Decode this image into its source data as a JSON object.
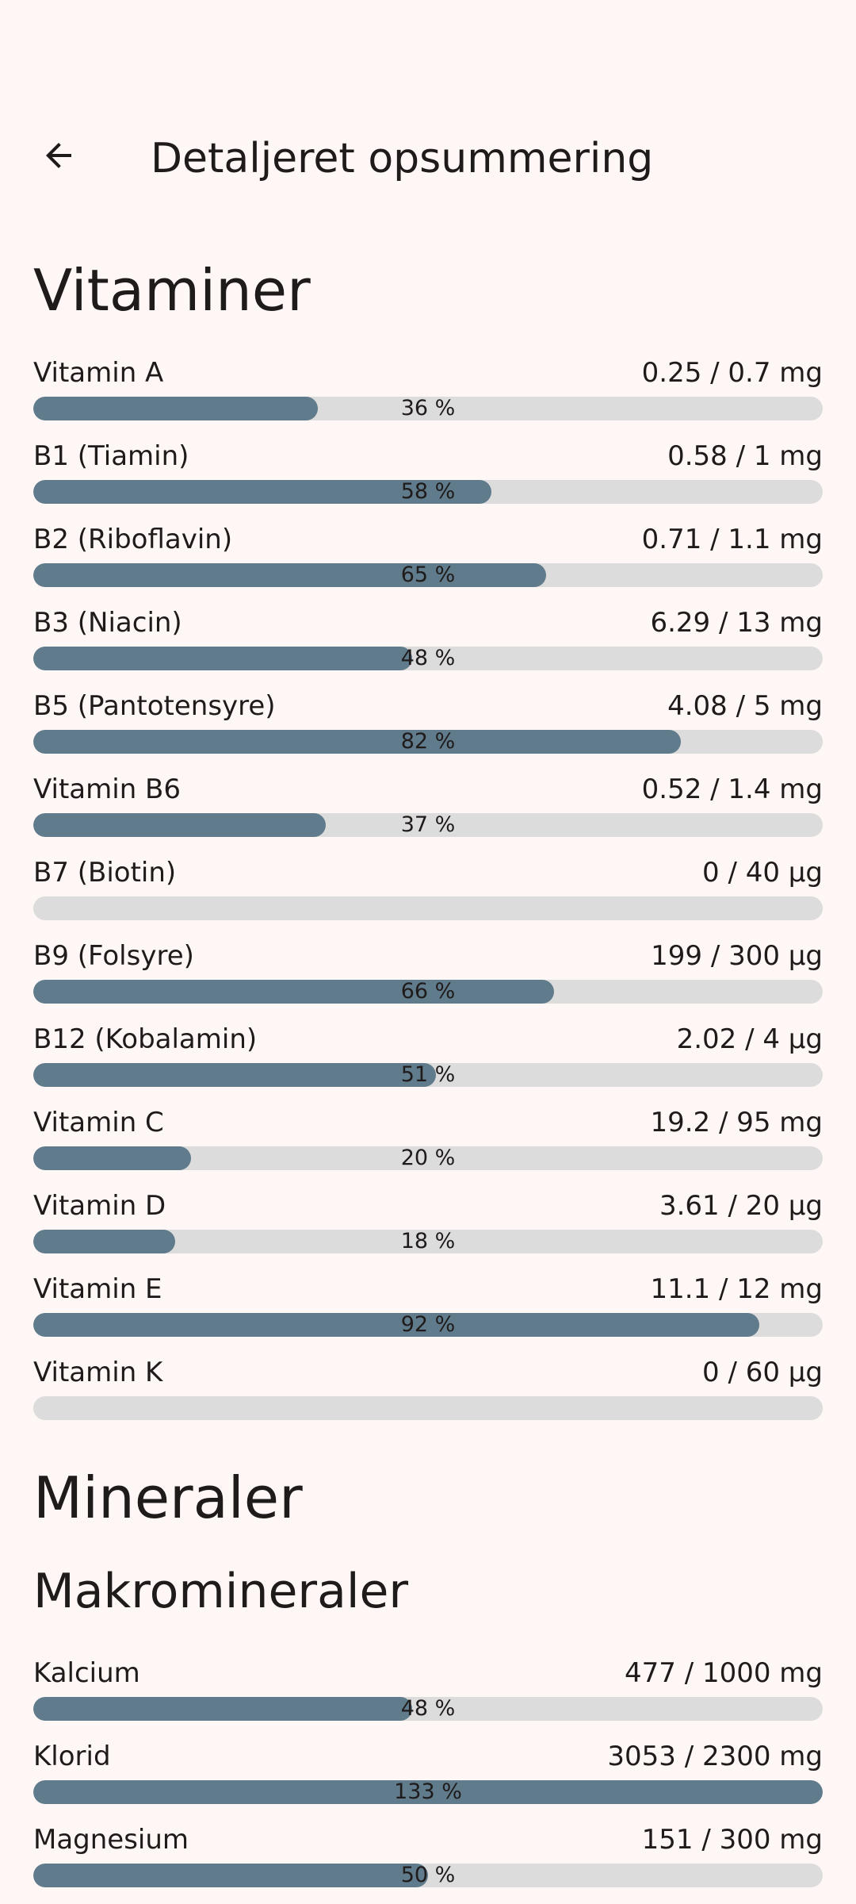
{
  "colors": {
    "background": "#FFF7F5",
    "bar_fill": "#607B8B",
    "bar_track": "#DDDCDC",
    "text": "#1F1B1B"
  },
  "header": {
    "back_icon": "arrow-left-icon",
    "title": "Detaljeret opsummering"
  },
  "vitamins": {
    "title": "Vitaminer",
    "items": [
      {
        "name": "Vitamin A",
        "amount": "0.25 / 0.7 mg",
        "percent_label": "36 %",
        "progress": 0.36
      },
      {
        "name": "B1 (Tiamin)",
        "amount": "0.58 / 1 mg",
        "percent_label": "58 %",
        "progress": 0.58
      },
      {
        "name": "B2 (Riboflavin)",
        "amount": "0.71 / 1.1 mg",
        "percent_label": "65 %",
        "progress": 0.65
      },
      {
        "name": "B3 (Niacin)",
        "amount": "6.29 / 13 mg",
        "percent_label": "48 %",
        "progress": 0.48
      },
      {
        "name": "B5 (Pantotensyre)",
        "amount": "4.08 / 5 mg",
        "percent_label": "82 %",
        "progress": 0.82
      },
      {
        "name": "Vitamin B6",
        "amount": "0.52 / 1.4 mg",
        "percent_label": "37 %",
        "progress": 0.37
      },
      {
        "name": "B7 (Biotin)",
        "amount": "0 / 40 µg",
        "percent_label": "",
        "progress": 0
      },
      {
        "name": "B9 (Folsyre)",
        "amount": "199 / 300 µg",
        "percent_label": "66 %",
        "progress": 0.66
      },
      {
        "name": "B12 (Kobalamin)",
        "amount": "2.02 / 4 µg",
        "percent_label": "51 %",
        "progress": 0.51
      },
      {
        "name": "Vitamin C",
        "amount": "19.2 / 95 mg",
        "percent_label": "20 %",
        "progress": 0.2
      },
      {
        "name": "Vitamin D",
        "amount": "3.61 / 20 µg",
        "percent_label": "18 %",
        "progress": 0.18
      },
      {
        "name": "Vitamin E",
        "amount": "11.1 / 12 mg",
        "percent_label": "92 %",
        "progress": 0.92
      },
      {
        "name": "Vitamin K",
        "amount": "0 / 60 µg",
        "percent_label": "",
        "progress": 0
      }
    ]
  },
  "minerals": {
    "title": "Mineraler",
    "macro_title": "Makromineraler",
    "items": [
      {
        "name": "Kalcium",
        "amount": "477 / 1000 mg",
        "percent_label": "48 %",
        "progress": 0.48
      },
      {
        "name": "Klorid",
        "amount": "3053 / 2300 mg",
        "percent_label": "133 %",
        "progress": 1.0
      },
      {
        "name": "Magnesium",
        "amount": "151 / 300 mg",
        "percent_label": "50 %",
        "progress": 0.5
      }
    ]
  }
}
